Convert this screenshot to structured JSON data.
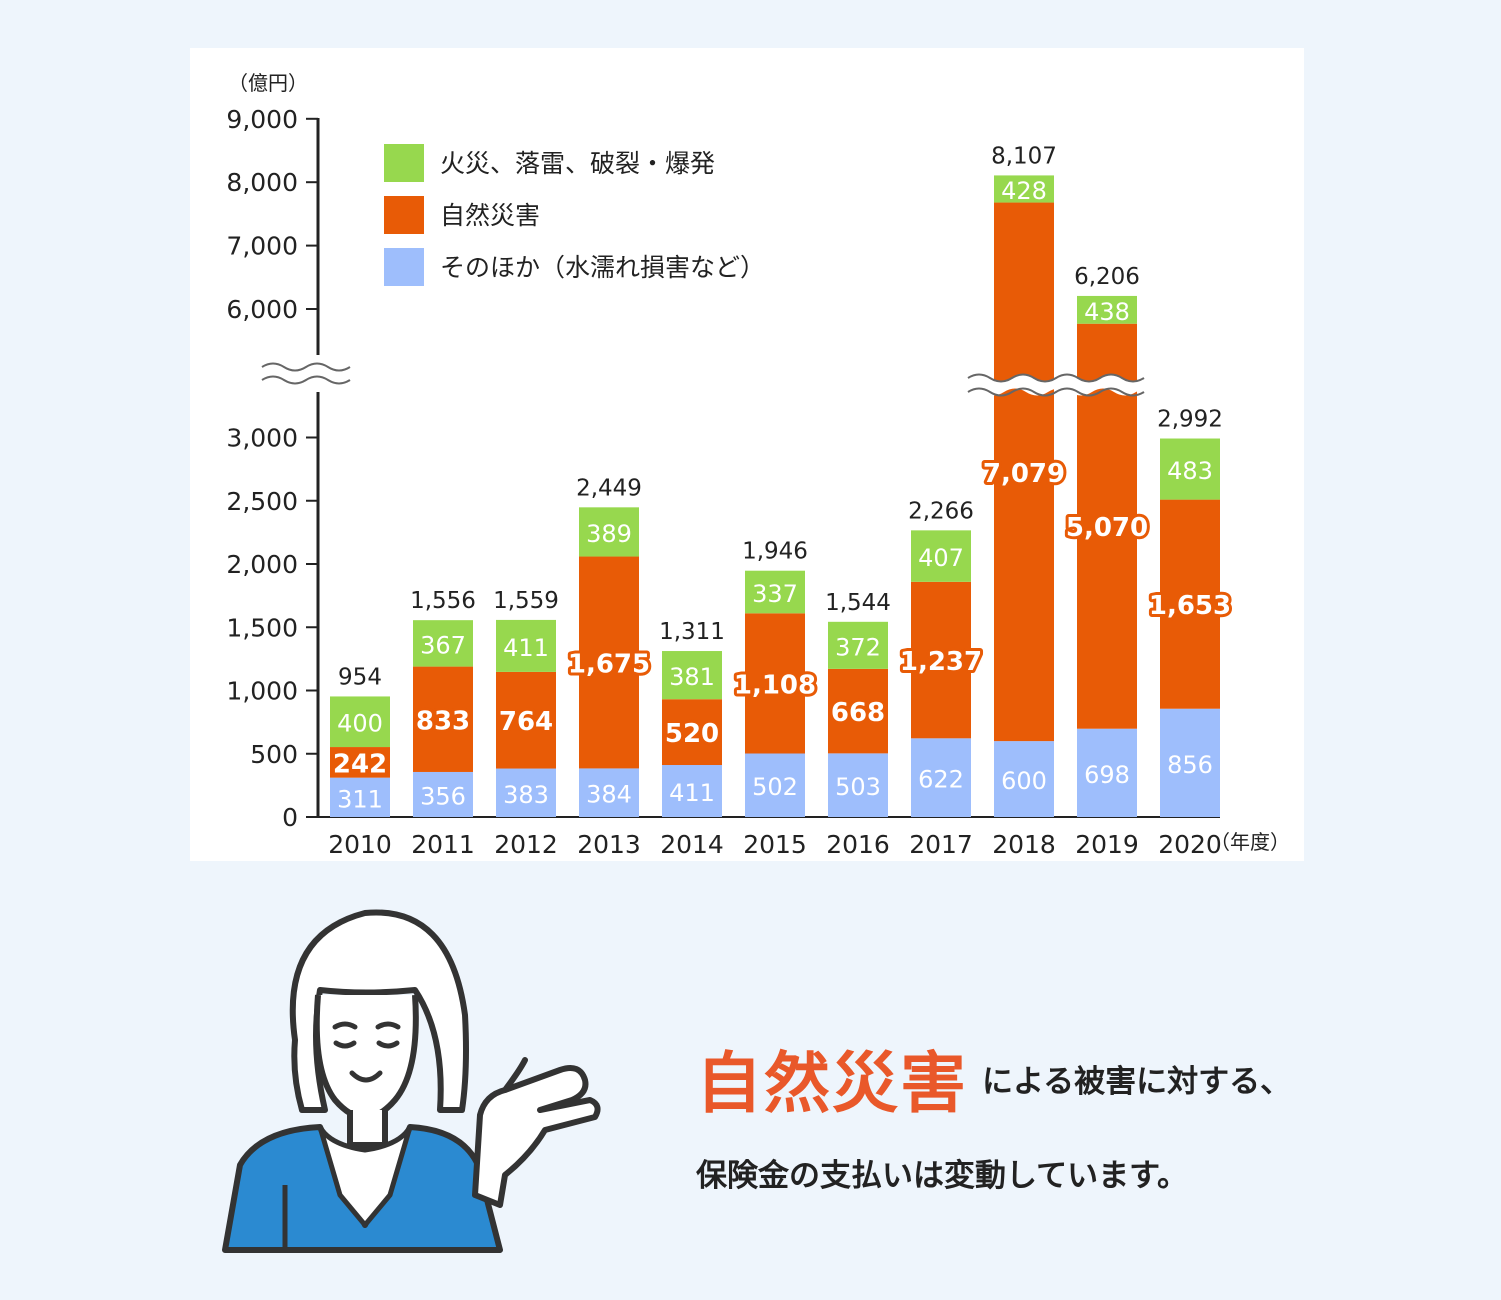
{
  "chart_data": {
    "type": "bar",
    "stacked": true,
    "y_unit_label": "（億円）",
    "x_unit_label": "（年度）",
    "y_ticks_lower": [
      "0",
      "500",
      "1,000",
      "1,500",
      "2,000",
      "2,500",
      "3,000"
    ],
    "y_ticks_upper": [
      "6,000",
      "7,000",
      "8,000",
      "9,000"
    ],
    "axis_break": {
      "from": 3000,
      "to": 5000
    },
    "legend_position": "top-left",
    "categories": [
      "2010",
      "2011",
      "2012",
      "2013",
      "2014",
      "2015",
      "2016",
      "2017",
      "2018",
      "2019",
      "2020"
    ],
    "series": [
      {
        "name": "そのほか（水濡れ損害など）",
        "color": "#9ebefc",
        "values": [
          311,
          356,
          383,
          384,
          411,
          502,
          503,
          622,
          600,
          698,
          856
        ]
      },
      {
        "name": "自然災害",
        "color": "#e85b06",
        "values": [
          242,
          833,
          764,
          1675,
          520,
          1108,
          668,
          1237,
          7079,
          5070,
          1653
        ]
      },
      {
        "name": "火災、落雷、破裂・爆発",
        "color": "#97d84e",
        "values": [
          400,
          367,
          411,
          389,
          381,
          337,
          372,
          407,
          428,
          438,
          483
        ]
      }
    ],
    "totals": [
      "954",
      "1,556",
      "1,559",
      "2,449",
      "1,311",
      "1,946",
      "1,544",
      "2,266",
      "8,107",
      "6,206",
      "2,992"
    ],
    "value_labels": {
      "そのほか": [
        "311",
        "356",
        "383",
        "384",
        "411",
        "502",
        "503",
        "622",
        "600",
        "698",
        "856"
      ],
      "自然災害": [
        "242",
        "833",
        "764",
        "1,675",
        "520",
        "1,108",
        "668",
        "1,237",
        "7,079",
        "5,070",
        "1,653"
      ],
      "火災": [
        "400",
        "367",
        "411",
        "389",
        "381",
        "337",
        "372",
        "407",
        "428",
        "438",
        "483"
      ]
    }
  },
  "caption": {
    "highlight": "自然災害",
    "line1_rest": "による被害に対する、",
    "line2": "保険金の支払いは変動しています。"
  },
  "colors": {
    "natural_disaster": "#e85b06",
    "fire": "#97d84e",
    "other": "#9ebefc",
    "caption_highlight": "#e9582a",
    "jacket": "#2b8ad1"
  }
}
